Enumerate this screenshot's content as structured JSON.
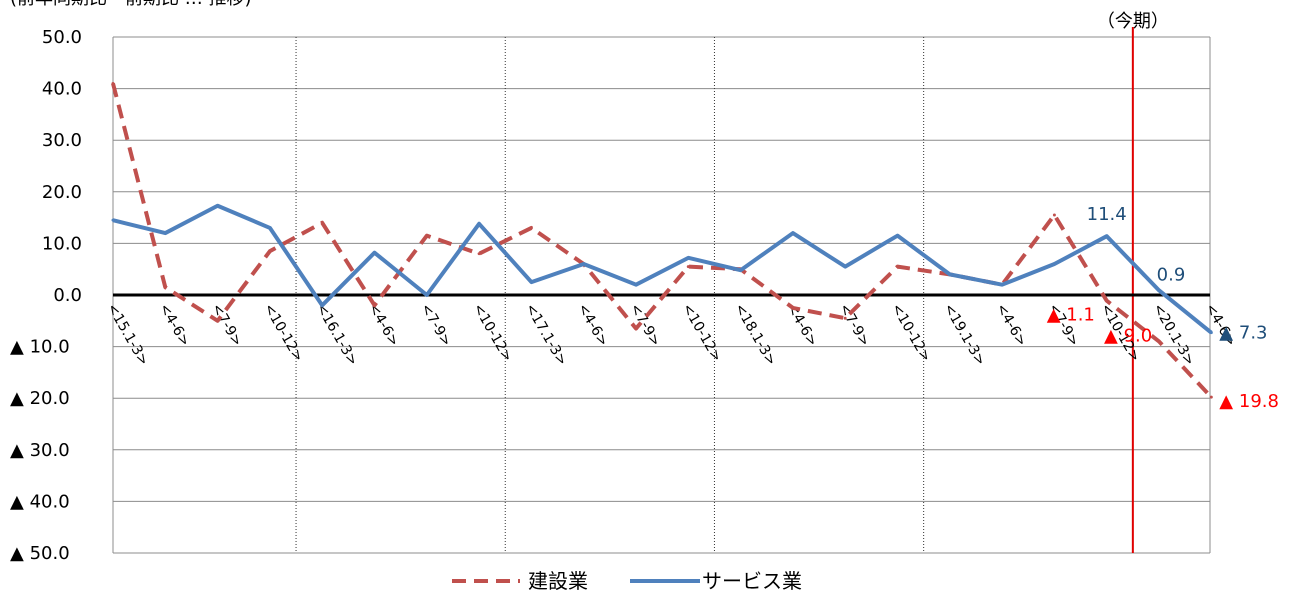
{
  "chart_data": {
    "type": "line",
    "title": "",
    "title_top_partial": "(前年同期比・前期比 … 推移)",
    "current_period_label": "（今期）",
    "categories": [
      "<15.1-3>",
      "<4-6>",
      "<7-9>",
      "<10-12>",
      "<16.1-3>",
      "<4-6>",
      "<7-9>",
      "<10-12>",
      "<17.1-3>",
      "<4-6>",
      "<7-9>",
      "<10-12>",
      "<18.1-3>",
      "<4-6>",
      "<7-9>",
      "<10-12>",
      "<19.1-3>",
      "<4-6>",
      "<7-9>",
      "<10-12>",
      "<20.1-3>",
      "<4-6>"
    ],
    "ylim": [
      -50,
      50
    ],
    "y_ticks": [
      {
        "value": 50,
        "label": "50.0"
      },
      {
        "value": 40,
        "label": "40.0"
      },
      {
        "value": 30,
        "label": "30.0"
      },
      {
        "value": 20,
        "label": "20.0"
      },
      {
        "value": 10,
        "label": "10.0"
      },
      {
        "value": 0,
        "label": "0.0"
      },
      {
        "value": -10,
        "label": "▲ 10.0"
      },
      {
        "value": -20,
        "label": "▲ 20.0"
      },
      {
        "value": -30,
        "label": "▲ 30.0"
      },
      {
        "value": -40,
        "label": "▲ 40.0"
      },
      {
        "value": -50,
        "label": "▲ 50.0"
      }
    ],
    "grid": "horizontal",
    "year_separators_after_index": [
      3,
      7,
      11,
      15
    ],
    "current_period_index": 20,
    "legend_position": "bottom",
    "series": [
      {
        "name": "建設業",
        "style": "dashed",
        "color": "#C0504D",
        "values": [
          41.0,
          1.5,
          -5.0,
          8.5,
          14.0,
          -2.0,
          11.5,
          8.0,
          13.0,
          6.0,
          -6.5,
          5.5,
          5.0,
          -2.5,
          -4.5,
          5.5,
          4.0,
          2.0,
          15.5,
          -1.1,
          -9.0,
          -19.8
        ]
      },
      {
        "name": "サービス業",
        "style": "solid",
        "color": "#4F81BD",
        "values": [
          14.5,
          12.0,
          17.3,
          13.0,
          -2.0,
          8.2,
          0.0,
          13.8,
          2.5,
          6.0,
          2.0,
          7.2,
          4.8,
          12.0,
          5.5,
          11.5,
          4.0,
          2.0,
          6.0,
          11.4,
          0.9,
          -7.3
        ]
      }
    ],
    "annotations": [
      {
        "series": "サービス業",
        "index": 19,
        "text": "11.4",
        "color": "#1F4E79"
      },
      {
        "series": "サービス業",
        "index": 20,
        "text": "0.9",
        "color": "#1F4E79"
      },
      {
        "series": "サービス業",
        "index": 21,
        "text": "▲ 7.3",
        "color": "#1F4E79"
      },
      {
        "series": "建設業",
        "index": 19,
        "text": "▲ 1.1",
        "color": "#FF0000"
      },
      {
        "series": "建設業",
        "index": 20,
        "text": "▲ 9.0",
        "color": "#FF0000"
      },
      {
        "series": "建設業",
        "index": 21,
        "text": "▲ 19.8",
        "color": "#FF0000"
      }
    ]
  }
}
